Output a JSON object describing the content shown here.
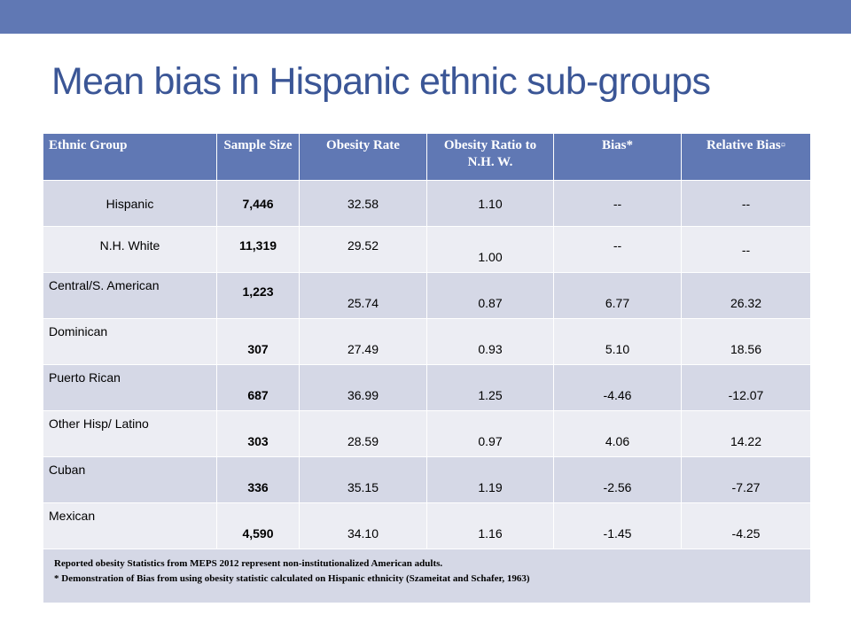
{
  "slide": {
    "title": "Mean bias in Hispanic ethnic sub-groups",
    "accent_color": "#6078b4",
    "title_color": "#3b5696"
  },
  "table": {
    "headers": [
      "Ethnic Group",
      "Sample Size",
      "Obesity Rate",
      "Obesity Ratio to N.H. W.",
      "Bias*",
      "Relative Bias"
    ],
    "rows": [
      {
        "group": "Hispanic",
        "sample_size": "7,446",
        "obesity_rate": "32.58",
        "ratio": "1.10",
        "bias": "--",
        "relative_bias": "--"
      },
      {
        "group": "N.H. White",
        "sample_size": "11,319",
        "obesity_rate": "29.52",
        "ratio": "1.00",
        "bias": "--",
        "relative_bias": "--"
      },
      {
        "group": "Central/S. American",
        "sample_size": "1,223",
        "obesity_rate": "25.74",
        "ratio": "0.87",
        "bias": "6.77",
        "relative_bias": "26.32"
      },
      {
        "group": "Dominican",
        "sample_size": "307",
        "obesity_rate": "27.49",
        "ratio": "0.93",
        "bias": "5.10",
        "relative_bias": "18.56"
      },
      {
        "group": "Puerto Rican",
        "sample_size": "687",
        "obesity_rate": "36.99",
        "ratio": "1.25",
        "bias": "-4.46",
        "relative_bias": "-12.07"
      },
      {
        "group": "Other Hisp/ Latino",
        "sample_size": "303",
        "obesity_rate": "28.59",
        "ratio": "0.97",
        "bias": "4.06",
        "relative_bias": "14.22"
      },
      {
        "group": "Cuban",
        "sample_size": "336",
        "obesity_rate": "35.15",
        "ratio": "1.19",
        "bias": "-2.56",
        "relative_bias": "-7.27"
      },
      {
        "group": "Mexican",
        "sample_size": "4,590",
        "obesity_rate": "34.10",
        "ratio": "1.16",
        "bias": "-1.45",
        "relative_bias": "-4.25"
      }
    ],
    "footnotes": [
      "Reported obesity Statistics from MEPS 2012 represent non-institutionalized American adults.",
      "* Demonstration of Bias from using obesity statistic calculated on Hispanic ethnicity (Szameitat and Schafer, 1963)"
    ]
  }
}
